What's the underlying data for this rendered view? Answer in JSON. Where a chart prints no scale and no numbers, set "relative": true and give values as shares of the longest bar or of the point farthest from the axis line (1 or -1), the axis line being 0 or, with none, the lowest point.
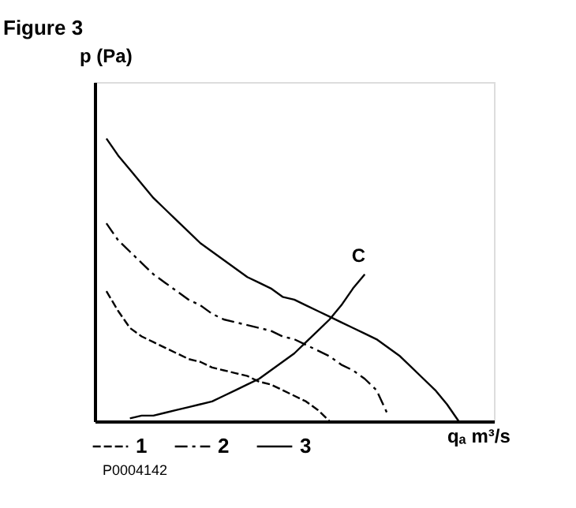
{
  "chart_data": {
    "type": "line",
    "title": "Figure 3",
    "ylabel": "p (Pa)",
    "xlabel": "qₐ m³/s",
    "relative": true,
    "legend": "bottom left",
    "grid": false,
    "marker": "none",
    "categories": [
      null,
      null,
      null,
      null,
      null,
      null,
      null,
      null,
      null,
      null,
      null,
      null,
      null,
      null,
      null,
      null,
      null,
      null,
      null,
      null,
      null,
      null,
      null,
      null,
      null,
      null,
      null,
      null,
      null,
      null,
      null,
      null,
      null,
      null,
      null
    ],
    "series": [
      {
        "name": "1",
        "color": "#000000",
        "line_style": "dashed",
        "values": [
          null,
          0.46,
          0.39,
          0.33,
          0.3,
          0.28,
          0.26,
          0.24,
          0.22,
          0.21,
          0.19,
          0.18,
          0.17,
          0.16,
          0.14,
          0.13,
          0.11,
          0.09,
          0.07,
          0.04,
          0.0,
          null,
          null,
          null,
          null,
          null,
          null,
          null,
          null,
          null,
          null,
          null,
          null,
          null,
          null
        ]
      },
      {
        "name": "2",
        "color": "#000000",
        "line_style": "dashdot",
        "values": [
          null,
          0.7,
          0.64,
          0.6,
          0.56,
          0.52,
          0.49,
          0.46,
          0.43,
          0.41,
          0.38,
          0.36,
          0.35,
          0.34,
          0.33,
          0.32,
          0.3,
          0.29,
          0.27,
          0.25,
          0.23,
          0.2,
          0.18,
          0.15,
          0.11,
          0.02,
          null,
          null,
          null,
          null,
          null,
          null,
          null,
          null,
          null
        ]
      },
      {
        "name": "3",
        "color": "#000000",
        "line_style": "solid",
        "values": [
          null,
          1.0,
          0.94,
          0.89,
          0.84,
          0.79,
          0.75,
          0.71,
          0.67,
          0.63,
          0.6,
          0.57,
          0.54,
          0.51,
          0.49,
          0.47,
          0.44,
          0.43,
          0.41,
          0.39,
          0.37,
          0.35,
          0.33,
          0.31,
          0.29,
          0.26,
          0.23,
          0.19,
          0.15,
          0.11,
          0.06,
          0.0,
          null,
          null,
          null
        ]
      },
      {
        "name": "C",
        "color": "#000000",
        "values": [
          null,
          null,
          null,
          0.01,
          0.02,
          0.02,
          0.03,
          0.04,
          0.05,
          0.06,
          0.07,
          0.09,
          0.11,
          0.13,
          0.15,
          0.18,
          0.21,
          0.24,
          0.28,
          0.32,
          0.36,
          0.41,
          0.47,
          0.52,
          null,
          null,
          null,
          null,
          null,
          null,
          null,
          null,
          null,
          null,
          null
        ]
      }
    ],
    "annotations": [
      "P0004142"
    ]
  }
}
